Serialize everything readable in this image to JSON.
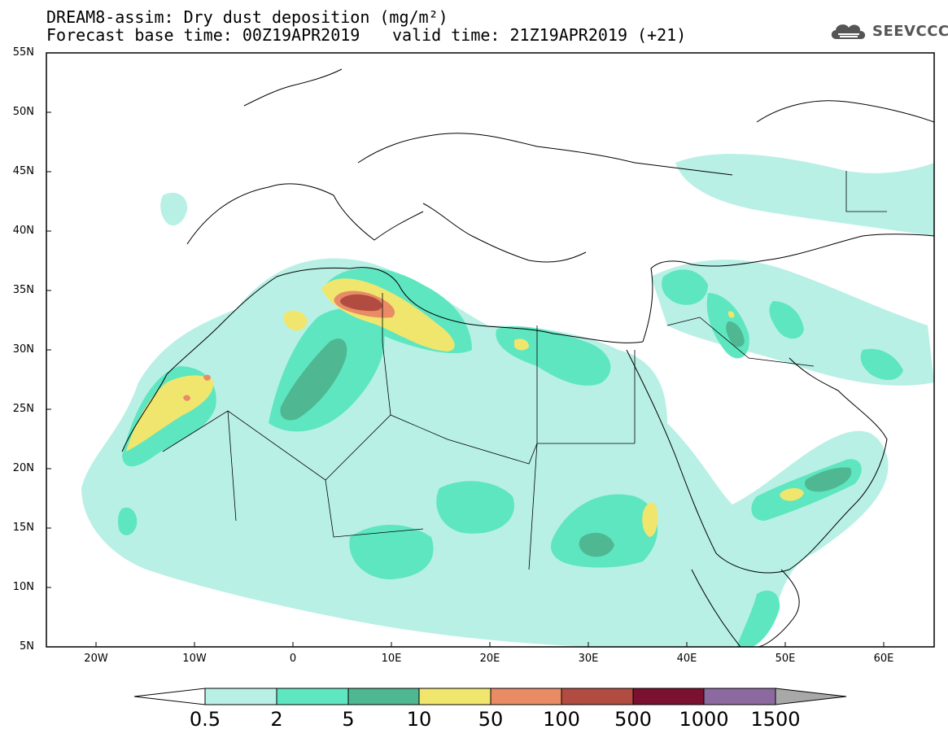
{
  "title": {
    "line1": "DREAM8-assim: Dry dust deposition (mg/m²)",
    "line2_left": "Forecast base time: 00Z19APR2019",
    "line2_right": "valid time: 21Z19APR2019 (+21)"
  },
  "logo": {
    "text": "SEEVCCC",
    "icon": "cloud-logo-icon"
  },
  "axes": {
    "lat_labels": [
      "55N",
      "50N",
      "45N",
      "40N",
      "35N",
      "30N",
      "25N",
      "20N",
      "15N",
      "10N",
      "5N"
    ],
    "lon_labels": [
      "20W",
      "10W",
      "0",
      "10E",
      "20E",
      "30E",
      "40E",
      "50E",
      "60E"
    ]
  },
  "colorbar": {
    "labels": [
      "0.5",
      "2",
      "5",
      "10",
      "50",
      "100",
      "500",
      "1000",
      "1500"
    ],
    "colors": [
      "#ffffff",
      "#b8f0e6",
      "#5ee6c0",
      "#4fb893",
      "#f0e66e",
      "#e98c66",
      "#b24c40",
      "#7b1030",
      "#8c6aa0",
      "#a8a8a8"
    ]
  }
}
